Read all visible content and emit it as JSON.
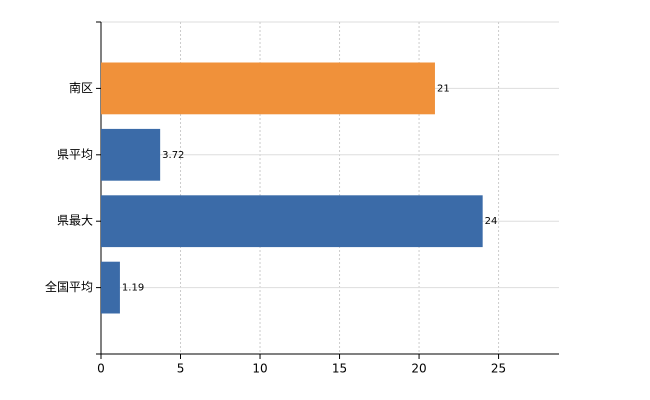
{
  "chart_data": {
    "type": "hbar",
    "categories": [
      "南区",
      "県平均",
      "県最大",
      "全国平均"
    ],
    "values": [
      21,
      3.72,
      24,
      1.19
    ],
    "colors": [
      "#f0913a",
      "#3b6ba8",
      "#3b6ba8",
      "#3b6ba8"
    ],
    "xlim": [
      0,
      28.8
    ],
    "xticks": [
      0,
      5,
      10,
      15,
      20,
      25
    ],
    "grid": true
  }
}
